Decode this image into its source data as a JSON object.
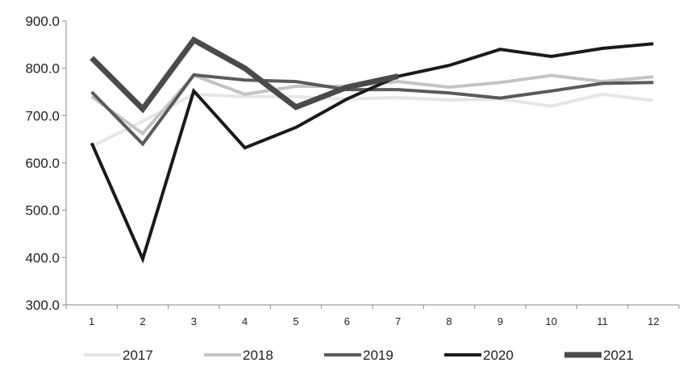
{
  "chart_data": {
    "type": "line",
    "title": "",
    "xlabel": "",
    "ylabel": "",
    "categories": [
      "1",
      "2",
      "3",
      "4",
      "5",
      "6",
      "7",
      "8",
      "9",
      "10",
      "11",
      "12"
    ],
    "ylim": [
      300,
      900
    ],
    "yticks": [
      300,
      400,
      500,
      600,
      700,
      800,
      900
    ],
    "ytick_labels": [
      "300.0",
      "400.0",
      "500.0",
      "600.0",
      "700.0",
      "800.0",
      "900.0"
    ],
    "grid": false,
    "legend_position": "bottom",
    "series": [
      {
        "name": "2017",
        "color": "#e6e6e6",
        "width": 4,
        "values": [
          635,
          688,
          745,
          740,
          740,
          735,
          738,
          733,
          735,
          720,
          745,
          732
        ]
      },
      {
        "name": "2018",
        "color": "#c4c4c4",
        "width": 4,
        "values": [
          740,
          662,
          785,
          745,
          762,
          762,
          772,
          760,
          770,
          785,
          772,
          782
        ]
      },
      {
        "name": "2019",
        "color": "#5a5a5a",
        "width": 4,
        "values": [
          750,
          640,
          786,
          775,
          772,
          755,
          755,
          748,
          737,
          752,
          768,
          770
        ]
      },
      {
        "name": "2020",
        "color": "#1a1a1a",
        "width": 4,
        "values": [
          642,
          397,
          752,
          632,
          675,
          735,
          783,
          806,
          840,
          825,
          842,
          852
        ]
      },
      {
        "name": "2021",
        "color": "#4a4a4a",
        "width": 7,
        "values": [
          822,
          714,
          860,
          800,
          718,
          760,
          783,
          null,
          null,
          null,
          null,
          null
        ]
      }
    ]
  }
}
